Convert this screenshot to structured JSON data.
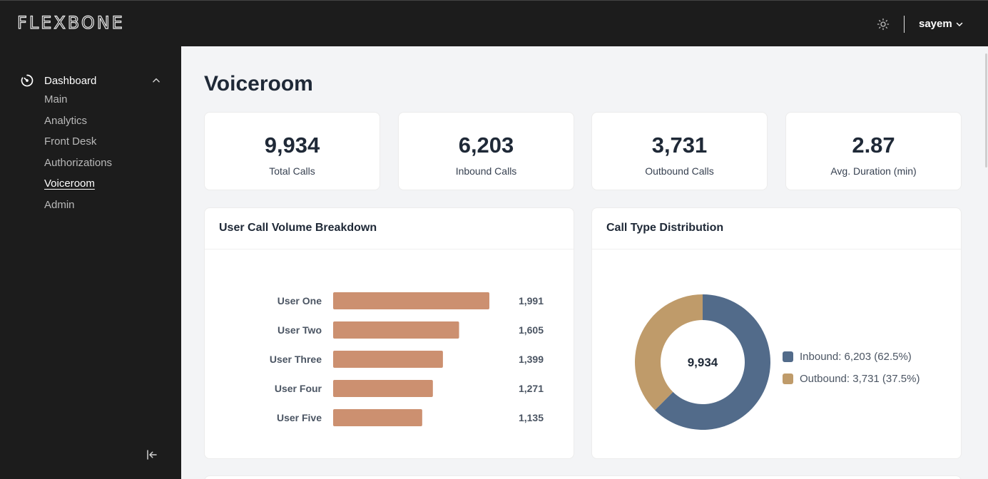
{
  "brand": "FLEXBONE",
  "header": {
    "user_name": "sayem",
    "theme_icon": "sun-icon",
    "user_menu_icon": "chevron-down-icon"
  },
  "sidebar": {
    "section_label": "Dashboard",
    "section_icon": "dashboard-gauge-icon",
    "items": [
      {
        "label": "Main",
        "active": false
      },
      {
        "label": "Analytics",
        "active": false
      },
      {
        "label": "Front Desk",
        "active": false
      },
      {
        "label": "Authorizations",
        "active": false
      },
      {
        "label": "Voiceroom",
        "active": true
      },
      {
        "label": "Admin",
        "active": false
      }
    ],
    "collapse_icon": "collapse-sidebar-icon"
  },
  "page": {
    "title": "Voiceroom"
  },
  "stats": [
    {
      "value": "9,934",
      "label": "Total Calls"
    },
    {
      "value": "6,203",
      "label": "Inbound Calls"
    },
    {
      "value": "3,731",
      "label": "Outbound Calls"
    },
    {
      "value": "2.87",
      "label": "Avg. Duration (min)"
    }
  ],
  "colors": {
    "bar": "#cc9070",
    "inbound": "#526b8a",
    "outbound": "#bf9b6a",
    "text_dark": "#1f2937"
  },
  "chart_data": [
    {
      "type": "bar",
      "orientation": "horizontal",
      "title": "User Call Volume Breakdown",
      "categories": [
        "User One",
        "User Two",
        "User Three",
        "User Four",
        "User Five"
      ],
      "values": [
        1991,
        1605,
        1399,
        1271,
        1135
      ],
      "value_labels": [
        "1,991",
        "1,605",
        "1,399",
        "1,271",
        "1,135"
      ],
      "xlim": [
        0,
        2000
      ]
    },
    {
      "type": "pie",
      "donut": true,
      "title": "Call Type Distribution",
      "center_label": "9,934",
      "labels": [
        "Inbound",
        "Outbound"
      ],
      "values": [
        6203,
        3731
      ],
      "legend": [
        "Inbound: 6,203 (62.5%)",
        "Outbound: 3,731 (37.5%)"
      ],
      "legend_position": "right"
    }
  ]
}
